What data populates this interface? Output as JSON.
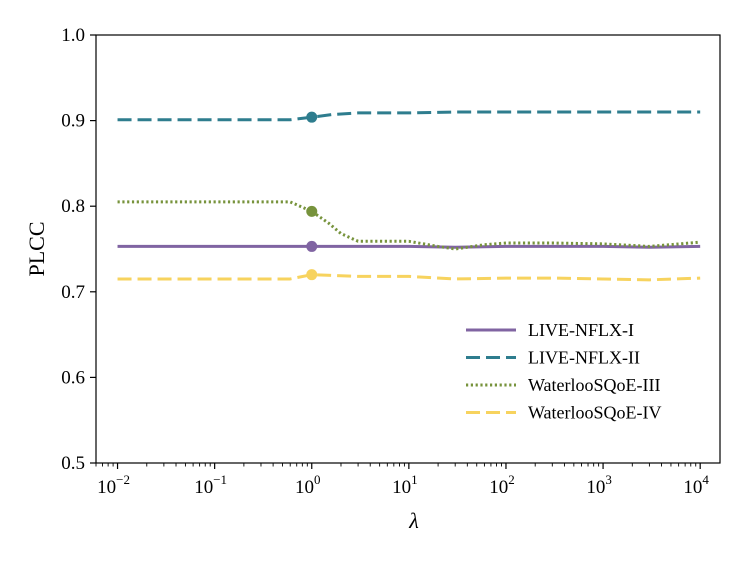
{
  "chart_data": {
    "type": "line",
    "title": "",
    "xlabel": "λ",
    "ylabel": "PLCC",
    "xscale": "log",
    "xlim": [
      0.006,
      16000
    ],
    "ylim": [
      0.5,
      1.0
    ],
    "yticks": [
      {
        "value": 0.5,
        "label": "0.5"
      },
      {
        "value": 0.6,
        "label": "0.6"
      },
      {
        "value": 0.7,
        "label": "0.7"
      },
      {
        "value": 0.8,
        "label": "0.8"
      },
      {
        "value": 0.9,
        "label": "0.9"
      },
      {
        "value": 1.0,
        "label": "1.0"
      }
    ],
    "xticks": [
      {
        "value": 0.01,
        "base": "10",
        "exp": "−2"
      },
      {
        "value": 0.1,
        "base": "10",
        "exp": "−1"
      },
      {
        "value": 1,
        "base": "10",
        "exp": "0"
      },
      {
        "value": 10,
        "base": "10",
        "exp": "1"
      },
      {
        "value": 100,
        "base": "10",
        "exp": "2"
      },
      {
        "value": 1000,
        "base": "10",
        "exp": "3"
      },
      {
        "value": 10000,
        "base": "10",
        "exp": "4"
      }
    ],
    "legend_position": "bottom-right",
    "series": [
      {
        "name": "LIVE-NFLX-I",
        "color": "#8064A2",
        "style": "solid",
        "x": [
          0.01,
          0.03,
          0.1,
          0.3,
          1,
          3,
          10,
          30,
          100,
          300,
          1000,
          3000,
          10000
        ],
        "y": [
          0.753,
          0.753,
          0.753,
          0.753,
          0.753,
          0.753,
          0.753,
          0.752,
          0.753,
          0.753,
          0.753,
          0.752,
          0.753
        ],
        "marker": {
          "x": 1,
          "y": 0.753
        }
      },
      {
        "name": "LIVE-NFLX-II",
        "color": "#2E7D8E",
        "style": "dashed",
        "x": [
          0.01,
          0.03,
          0.1,
          0.3,
          0.6,
          1,
          1.6,
          3,
          10,
          30,
          100,
          300,
          1000,
          3000,
          10000
        ],
        "y": [
          0.901,
          0.901,
          0.901,
          0.901,
          0.901,
          0.904,
          0.907,
          0.909,
          0.909,
          0.91,
          0.91,
          0.91,
          0.91,
          0.91,
          0.91
        ],
        "marker": {
          "x": 1,
          "y": 0.904
        }
      },
      {
        "name": "WaterlooSQoE-III",
        "color": "#77933C",
        "style": "dotted",
        "x": [
          0.01,
          0.03,
          0.1,
          0.3,
          0.6,
          1,
          1.5,
          2,
          3,
          10,
          20,
          30,
          60,
          100,
          300,
          1000,
          3000,
          10000
        ],
        "y": [
          0.805,
          0.805,
          0.805,
          0.805,
          0.805,
          0.794,
          0.78,
          0.768,
          0.759,
          0.759,
          0.753,
          0.75,
          0.755,
          0.757,
          0.757,
          0.756,
          0.753,
          0.758
        ],
        "marker": {
          "x": 1,
          "y": 0.794
        }
      },
      {
        "name": "WaterlooSQoE-IV",
        "color": "#F7D35E",
        "style": "dashed",
        "x": [
          0.01,
          0.03,
          0.1,
          0.3,
          0.6,
          1,
          3,
          10,
          30,
          100,
          300,
          1000,
          3000,
          10000
        ],
        "y": [
          0.715,
          0.715,
          0.715,
          0.715,
          0.715,
          0.72,
          0.718,
          0.718,
          0.715,
          0.716,
          0.716,
          0.715,
          0.714,
          0.716
        ],
        "marker": {
          "x": 1,
          "y": 0.72
        }
      }
    ]
  }
}
